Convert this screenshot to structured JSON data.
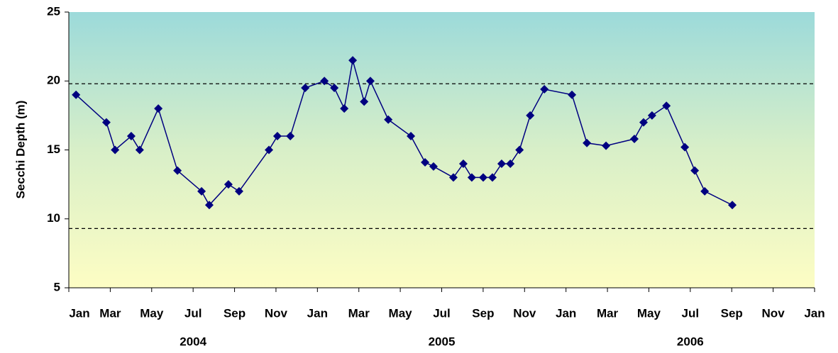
{
  "chart_data": {
    "type": "line",
    "y_axis_label": "Secchi Depth (m)",
    "x": [
      2004.029,
      2004.151,
      2004.186,
      2004.251,
      2004.285,
      2004.36,
      2004.437,
      2004.534,
      2004.565,
      2004.642,
      2004.685,
      2004.805,
      2004.839,
      2004.891,
      2004.951,
      2005.028,
      2005.068,
      2005.108,
      2005.142,
      2005.188,
      2005.213,
      2005.285,
      2005.376,
      2005.433,
      2005.467,
      2005.547,
      2005.587,
      2005.621,
      2005.667,
      2005.704,
      2005.741,
      2005.776,
      2005.813,
      2005.856,
      2005.913,
      2006.024,
      2006.084,
      2006.161,
      2006.275,
      2006.312,
      2006.346,
      2006.404,
      2006.478,
      2006.518,
      2006.558,
      2006.669
    ],
    "series": [
      {
        "color": "#000080",
        "values": [
          19.0,
          17.0,
          15.0,
          16.0,
          15.0,
          18.0,
          13.5,
          12.0,
          11.0,
          12.5,
          12.0,
          15.0,
          16.0,
          16.0,
          19.5,
          20.0,
          19.5,
          18.0,
          21.5,
          18.5,
          20.0,
          17.2,
          16.0,
          14.1,
          13.8,
          13.0,
          14.0,
          13.0,
          13.0,
          13.0,
          14.0,
          14.0,
          15.0,
          17.5,
          19.4,
          19.0,
          15.5,
          15.3,
          15.8,
          17.0,
          17.5,
          18.2,
          15.2,
          13.5,
          12.0,
          11.0
        ]
      }
    ],
    "xlim": [
      2004,
      2007
    ],
    "xticks": [
      {
        "value": 2004,
        "label": "Jan"
      },
      {
        "value": 2004.1667,
        "label": "Mar"
      },
      {
        "value": 2004.3333,
        "label": "May"
      },
      {
        "value": 2004.5,
        "label": "Jul"
      },
      {
        "value": 2004.6667,
        "label": "Sep"
      },
      {
        "value": 2004.8333,
        "label": "Nov"
      },
      {
        "value": 2005,
        "label": "Jan"
      },
      {
        "value": 2005.1667,
        "label": "Mar"
      },
      {
        "value": 2005.3333,
        "label": "May"
      },
      {
        "value": 2005.5,
        "label": "Jul"
      },
      {
        "value": 2005.6667,
        "label": "Sep"
      },
      {
        "value": 2005.8333,
        "label": "Nov"
      },
      {
        "value": 2006,
        "label": "Jan"
      },
      {
        "value": 2006.1667,
        "label": "Mar"
      },
      {
        "value": 2006.3333,
        "label": "May"
      },
      {
        "value": 2006.5,
        "label": "Jul"
      },
      {
        "value": 2006.6667,
        "label": "Sep"
      },
      {
        "value": 2006.8333,
        "label": "Nov"
      },
      {
        "value": 2007,
        "label": "Jan"
      }
    ],
    "year_labels": [
      {
        "value": 2004.5,
        "label": "2004"
      },
      {
        "value": 2005.5,
        "label": "2005"
      },
      {
        "value": 2006.5,
        "label": "2006"
      }
    ],
    "ylim": [
      5,
      25
    ],
    "yticks": [
      5,
      10,
      15,
      20,
      25
    ],
    "reference_lines": [
      19.8,
      9.3
    ],
    "grid": false
  }
}
